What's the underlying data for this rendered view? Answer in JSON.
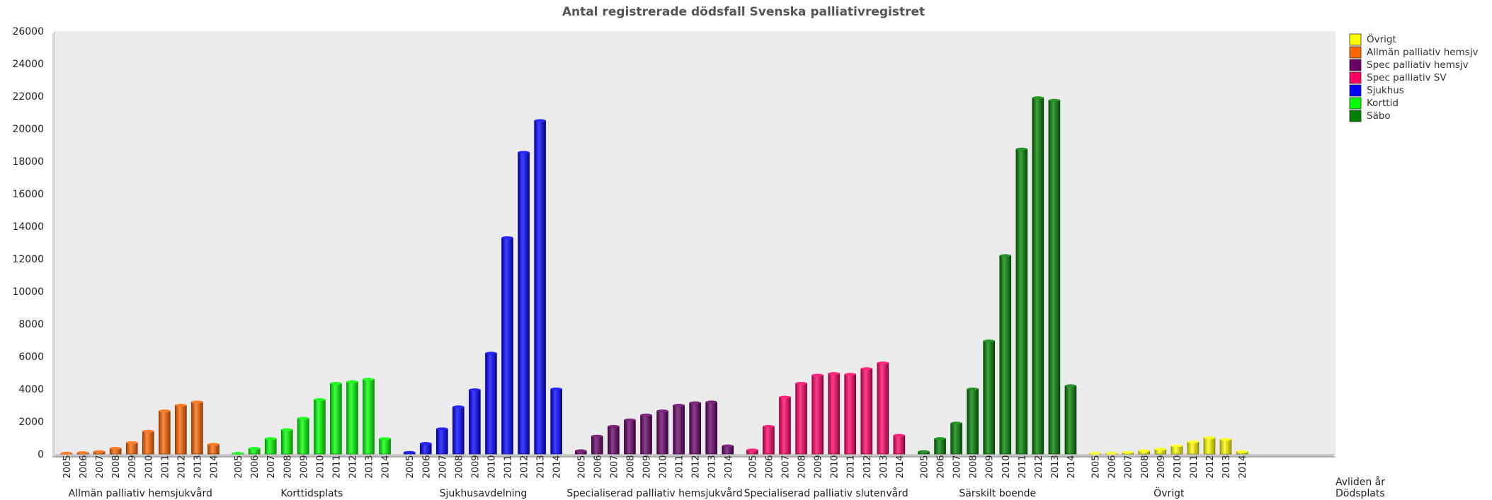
{
  "chart_data": {
    "type": "bar",
    "title": "Antal registrerade dödsfall Svenska palliativregistret",
    "ylim": [
      0,
      26000
    ],
    "yticks": [
      0,
      2000,
      4000,
      6000,
      8000,
      10000,
      12000,
      14000,
      16000,
      18000,
      20000,
      22000,
      24000,
      26000
    ],
    "years": [
      "2005",
      "2006",
      "2007",
      "2008",
      "2009",
      "2010",
      "2011",
      "2012",
      "2013",
      "2014"
    ],
    "axis_titles": [
      "Avliden år",
      "Dödsplats"
    ],
    "grid": false,
    "legend_position": "right",
    "legend": [
      {
        "label": "Övrigt",
        "color": "#FFFF00"
      },
      {
        "label": "Allmän palliativ hemsjv",
        "color": "#FF6600"
      },
      {
        "label": "Spec palliativ hemsjv",
        "color": "#660066"
      },
      {
        "label": "Spec palliativ SV",
        "color": "#FF0066"
      },
      {
        "label": "Sjukhus",
        "color": "#0000FF"
      },
      {
        "label": "Korttid",
        "color": "#00FF00"
      },
      {
        "label": "Säbo",
        "color": "#008000"
      }
    ],
    "groups": [
      {
        "name": "Allmän palliativ hemsjukvård",
        "color": "#FF6600",
        "values": [
          50,
          80,
          150,
          350,
          700,
          1400,
          2650,
          3000,
          3200,
          600
        ]
      },
      {
        "name": "Korttidsplats",
        "color": "#00FF00",
        "values": [
          30,
          350,
          950,
          1500,
          2200,
          3350,
          4350,
          4450,
          4600,
          950
        ]
      },
      {
        "name": "Sjukhusavdelning",
        "color": "#0000FF",
        "values": [
          100,
          650,
          1550,
          2900,
          3950,
          6200,
          13300,
          18550,
          20500,
          4000
        ]
      },
      {
        "name": "Specialiserad palliativ hemsjukvård",
        "color": "#660066",
        "values": [
          200,
          1100,
          1700,
          2100,
          2400,
          2650,
          3000,
          3150,
          3200,
          500
        ]
      },
      {
        "name": "Specialiserad palliativ slutenvård",
        "color": "#FF0066",
        "values": [
          250,
          1700,
          3500,
          4350,
          4850,
          4950,
          4900,
          5250,
          5600,
          1150
        ]
      },
      {
        "name": "Särskilt boende",
        "color": "#008000",
        "values": [
          150,
          950,
          1900,
          4000,
          6950,
          12200,
          18750,
          21900,
          21750,
          4200
        ]
      },
      {
        "name": "Övrigt",
        "color": "#FFFF00",
        "values": [
          20,
          50,
          100,
          200,
          300,
          500,
          750,
          1000,
          900,
          150
        ]
      }
    ]
  }
}
